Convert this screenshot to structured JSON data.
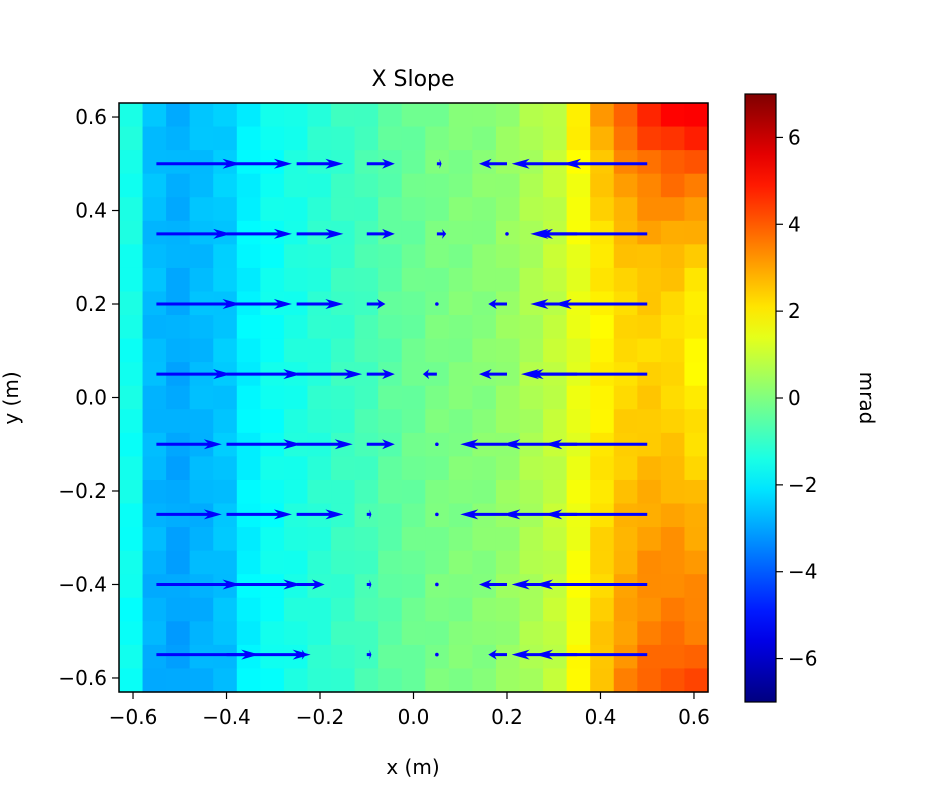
{
  "chart_data": {
    "type": "heatmap",
    "title": "X Slope",
    "xlabel": "x (m)",
    "ylabel": "y (m)",
    "xlim": [
      -0.63,
      0.63
    ],
    "ylim": [
      -0.63,
      0.63
    ],
    "xticks": [
      "−0.6",
      "−0.4",
      "−0.2",
      "0.0",
      "0.2",
      "0.4",
      "0.6"
    ],
    "yticks": [
      "−0.6",
      "−0.4",
      "−0.2",
      "0.0",
      "0.2",
      "0.4",
      "0.6"
    ],
    "colormap": "jet",
    "colorbar": {
      "label": "mrad",
      "range": [
        -7,
        7
      ],
      "ticks": [
        "−6",
        "−4",
        "−2",
        "0",
        "2",
        "4",
        "6"
      ]
    },
    "heatmap": {
      "grid": [
        25,
        25
      ],
      "x_profile": [
        -1.4,
        -2.6,
        -2.8,
        -2.6,
        -2.4,
        -1.9,
        -1.6,
        -1.4,
        -1.2,
        -1.0,
        -0.8,
        -0.5,
        -0.3,
        -0.1,
        0.0,
        0.1,
        0.3,
        0.6,
        0.9,
        1.3,
        1.9,
        2.6,
        3.3,
        4.0,
        4.5
      ],
      "right_edge_profile_top_to_bottom": [
        5.4,
        4.8,
        4.0,
        3.6,
        3.2,
        2.8,
        2.4,
        2.2,
        2.0,
        1.9,
        1.8,
        1.9,
        2.0,
        2.1,
        2.2,
        2.4,
        2.6,
        2.8,
        3.0,
        3.2,
        3.3,
        3.4,
        3.6,
        3.9,
        4.2
      ]
    },
    "quiver": {
      "color": "#0000ff",
      "x": [
        -0.55,
        -0.4,
        -0.25,
        -0.1,
        0.05,
        0.2,
        0.35,
        0.5
      ],
      "y": [
        0.5,
        0.35,
        0.2,
        0.05,
        -0.1,
        -0.25,
        -0.4,
        -0.55
      ],
      "u_by_row": [
        [
          0.18,
          0.14,
          0.1,
          0.06,
          0.01,
          -0.06,
          -0.14,
          -0.18
        ],
        [
          0.16,
          0.14,
          0.1,
          0.06,
          0.02,
          0.0,
          -0.1,
          -0.24
        ],
        [
          0.18,
          0.14,
          0.1,
          0.04,
          0.0,
          -0.04,
          -0.1,
          -0.2
        ],
        [
          0.16,
          0.16,
          0.14,
          0.06,
          -0.03,
          -0.06,
          -0.12,
          -0.26
        ],
        [
          0.14,
          0.16,
          0.12,
          0.06,
          0.0,
          -0.1,
          -0.16,
          -0.22
        ],
        [
          0.14,
          0.14,
          0.1,
          0.01,
          0.0,
          -0.1,
          -0.16,
          -0.22
        ],
        [
          0.18,
          0.16,
          0.06,
          0.01,
          0.0,
          -0.06,
          -0.14,
          -0.24
        ],
        [
          0.22,
          0.18,
          0.02,
          0.01,
          0.0,
          -0.04,
          -0.14,
          -0.24
        ]
      ]
    }
  }
}
